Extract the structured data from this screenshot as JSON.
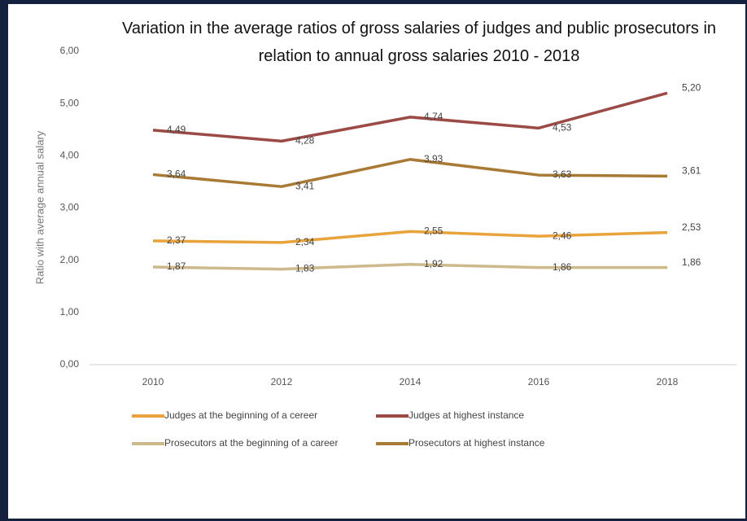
{
  "chart_data": {
    "type": "line",
    "title": "Variation in the average ratios of gross salaries of judges and public prosecutors in relation to annual gross salaries 2010 - 2018",
    "y_label": "Ratio with average annual salary",
    "categories": [
      "2010",
      "2012",
      "2014",
      "2016",
      "2018"
    ],
    "ylim": [
      0,
      6
    ],
    "yticks": [
      {
        "value": 0,
        "label": "0,00"
      },
      {
        "value": 1,
        "label": "1,00"
      },
      {
        "value": 2,
        "label": "2,00"
      },
      {
        "value": 3,
        "label": "3,00"
      },
      {
        "value": 4,
        "label": "4,00"
      },
      {
        "value": 5,
        "label": "5,00"
      },
      {
        "value": 6,
        "label": "6,00"
      }
    ],
    "series": [
      {
        "name": "Judges at the beginning of a cereer",
        "color": "#e8a33d",
        "values": [
          2.37,
          2.34,
          2.55,
          2.46,
          2.53
        ],
        "value_labels": [
          "2,37",
          "2,34",
          "2,55",
          "2,46",
          "2,53"
        ]
      },
      {
        "name": "Judges at highest instance",
        "color": "#9b4a45",
        "values": [
          4.49,
          4.28,
          4.74,
          4.53,
          5.2
        ],
        "value_labels": [
          "4,49",
          "4,28",
          "4,74",
          "4,53",
          "5,20"
        ]
      },
      {
        "name": "Prosecutors at the beginning of a career",
        "color": "#cdb98b",
        "values": [
          1.87,
          1.83,
          1.92,
          1.86,
          1.86
        ],
        "value_labels": [
          "1,87",
          "1,83",
          "1,92",
          "1,86",
          "1,86"
        ]
      },
      {
        "name": "Prosecutors at highest instance",
        "color": "#a87a35",
        "values": [
          3.64,
          3.41,
          3.93,
          3.63,
          3.61
        ],
        "value_labels": [
          "3,64",
          "3,41",
          "3,93",
          "3,63",
          "3,61"
        ]
      }
    ]
  }
}
